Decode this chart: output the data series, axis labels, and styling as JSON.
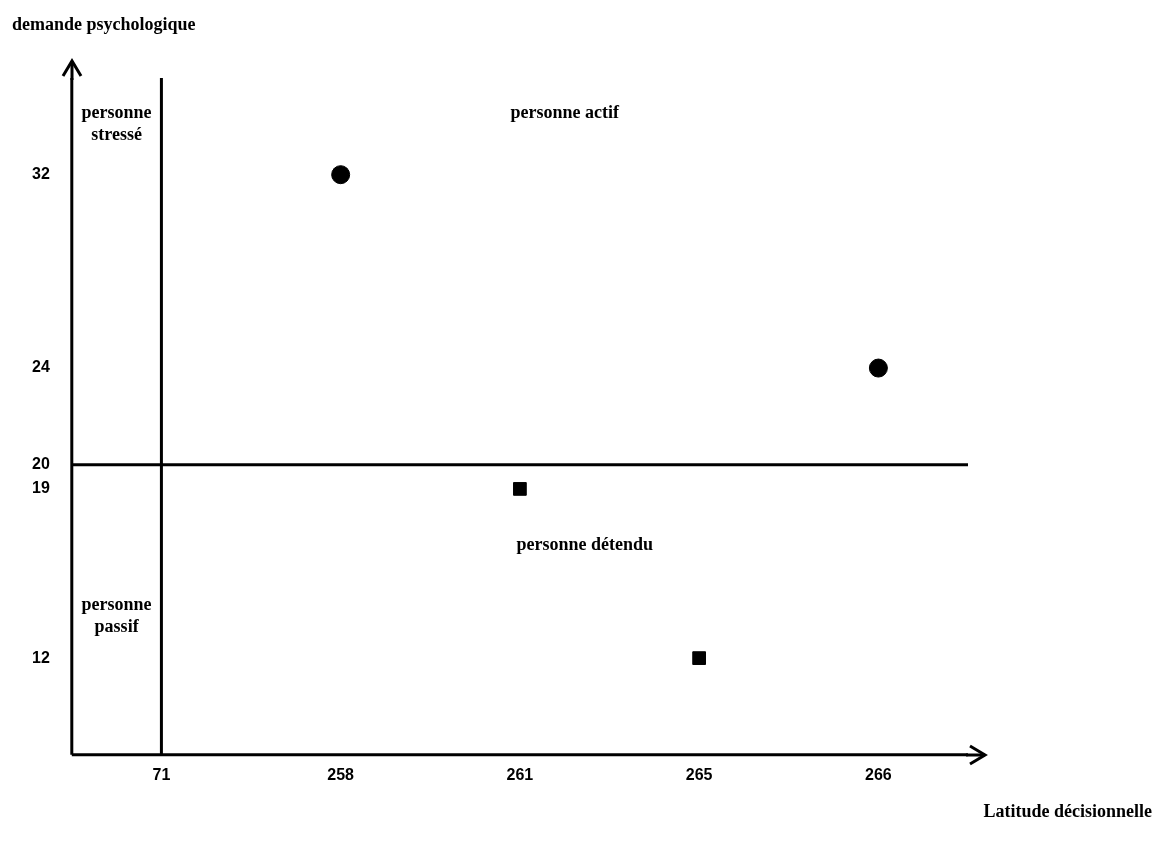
{
  "chart_data": {
    "type": "scatter",
    "xlabel": "Latitude décisionnelle",
    "ylabel": "demande psychologique",
    "categories": [
      "71",
      "258",
      "261",
      "265",
      "266"
    ],
    "ylim": [
      8,
      36
    ],
    "yticks": [
      12,
      19,
      20,
      24,
      32
    ],
    "grid": false,
    "legend": false,
    "series": [
      {
        "color": "#000000",
        "marker": "circle",
        "x": [
          "258",
          "266"
        ],
        "values": [
          32,
          24
        ]
      },
      {
        "color": "#000000",
        "marker": "square",
        "x": [
          "261",
          "265"
        ],
        "values": [
          19,
          12
        ]
      }
    ],
    "ref_lines": [
      {
        "axis": "x",
        "value": "71",
        "color": "#000000"
      },
      {
        "axis": "y",
        "value": 20,
        "color": "#000000"
      }
    ],
    "annotations": [
      "personne stressé",
      "personne actif",
      "personne passif",
      "personne détendu"
    ]
  }
}
